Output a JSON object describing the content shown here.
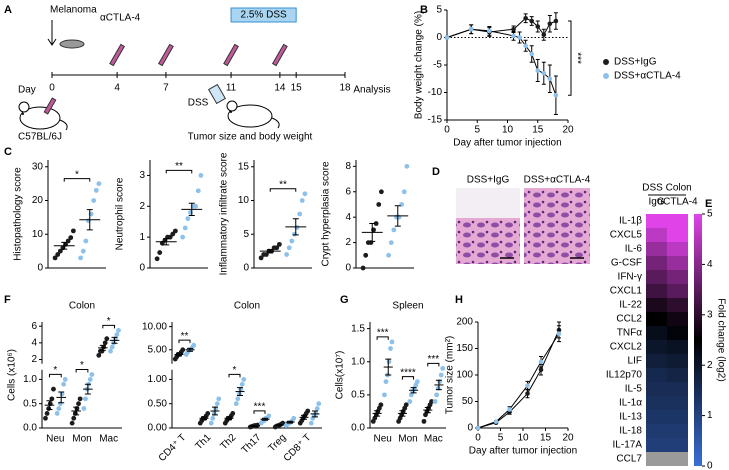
{
  "figure": {
    "panel_a": {
      "label": "A",
      "melanoma": "Melanoma",
      "antibody": "αCTLA-4",
      "dss_window": "2.5% DSS",
      "day": "Day",
      "days": [
        0,
        4,
        7,
        11,
        14,
        15,
        18
      ],
      "mouse": "C57BL/6J",
      "dss": "DSS",
      "measure": "Tumor size and body weight",
      "analysis": "Analysis"
    },
    "panel_d": {
      "label": "D",
      "images": [
        "DSS+IgG",
        "DSS+αCTLA-4"
      ]
    }
  },
  "chart_data": [
    {
      "type": "line",
      "label": "B",
      "xlabel": "Day after tumor injection",
      "ylabel": "Body weight change (%)",
      "xlim": [
        0,
        20
      ],
      "ylim": [
        -15,
        5
      ],
      "xticks": [
        0,
        5,
        10,
        15,
        20
      ],
      "yticks": [
        -15,
        -10,
        -5,
        0,
        5
      ],
      "hline": 0,
      "legend": "right",
      "significance": "***",
      "series": [
        {
          "name": "DSS+IgG",
          "color": "#1c1c1c",
          "x": [
            0,
            4,
            7,
            11,
            13,
            14,
            15,
            16,
            17,
            18
          ],
          "values": [
            0,
            1.5,
            1,
            1.5,
            3.5,
            3,
            2,
            0.5,
            2.5,
            3
          ],
          "errors": [
            0,
            0.8,
            0.8,
            0.6,
            0.8,
            0.8,
            1,
            1,
            1.5,
            1.5
          ]
        },
        {
          "name": "DSS+αCTLA-4",
          "color": "#8ec1ea",
          "x": [
            0,
            4,
            7,
            11,
            12,
            13,
            14,
            15,
            16,
            17,
            18
          ],
          "values": [
            0,
            1.5,
            1.2,
            0.3,
            0,
            -1.5,
            -3,
            -6,
            -6.5,
            -7.5,
            -10.5
          ],
          "errors": [
            0,
            0.8,
            0.8,
            0.8,
            1,
            1,
            1.5,
            2,
            2,
            2.5,
            3.5
          ]
        }
      ]
    },
    {
      "type": "dot",
      "label": "C",
      "ylabel": "Histopathology score",
      "ylim": [
        0,
        32
      ],
      "yticks": [
        0,
        10,
        20,
        30
      ],
      "significance": "*",
      "series": [
        {
          "color": "#1c1c1c",
          "points": [
            3,
            4,
            5,
            6,
            7,
            8,
            9,
            11
          ],
          "mean": 6.6,
          "sem": 1
        },
        {
          "color": "#8ec1ea",
          "points": [
            3,
            5,
            8,
            14,
            16,
            20,
            23,
            25
          ],
          "mean": 14.3,
          "sem": 3
        }
      ]
    },
    {
      "type": "dot",
      "ylabel": "Neutrophil score",
      "ylim": [
        0,
        3.5
      ],
      "yticks": [
        0,
        1,
        2,
        3
      ],
      "significance": "**",
      "series": [
        {
          "color": "#1c1c1c",
          "points": [
            0.3,
            0.5,
            0.8,
            0.9,
            1,
            1,
            1.1,
            1.2
          ],
          "mean": 0.85,
          "sem": 0.1
        },
        {
          "color": "#8ec1ea",
          "points": [
            1,
            1.3,
            1.6,
            1.8,
            2,
            2,
            2.5,
            3
          ],
          "mean": 1.9,
          "sem": 0.2
        }
      ]
    },
    {
      "type": "dot",
      "ylabel": "Inflammatory infiltrate score",
      "ylim": [
        0,
        16
      ],
      "yticks": [
        0,
        5,
        10,
        15
      ],
      "significance": "**",
      "series": [
        {
          "color": "#1c1c1c",
          "points": [
            1.5,
            2,
            2,
            2.5,
            2.5,
            3,
            3,
            3.5
          ],
          "mean": 2.5,
          "sem": 0.25
        },
        {
          "color": "#8ec1ea",
          "points": [
            2,
            3,
            4,
            5,
            6,
            8,
            10,
            11
          ],
          "mean": 6.1,
          "sem": 1.2
        }
      ]
    },
    {
      "type": "dot",
      "ylabel": "Crypt hyperplasia score",
      "ylim": [
        0,
        8.5
      ],
      "yticks": [
        0,
        2,
        4,
        6,
        8
      ],
      "series": [
        {
          "color": "#1c1c1c",
          "points": [
            0,
            1,
            2,
            2,
            3,
            3.5,
            5,
            6
          ],
          "mean": 2.8,
          "sem": 0.7
        },
        {
          "color": "#8ec1ea",
          "points": [
            1,
            2,
            3,
            4,
            4,
            5,
            6,
            8
          ],
          "mean": 4.1,
          "sem": 0.8
        }
      ]
    },
    {
      "type": "heatmap",
      "label": "E",
      "title": "DSS Colon",
      "columns": [
        "IgG",
        "αCTLA-4"
      ],
      "rows": [
        "IL-1β",
        "CXCL5",
        "IL-6",
        "G-CSF",
        "IFN-γ",
        "CXCL1",
        "IL-22",
        "CCL2",
        "TNFα",
        "CXCL2",
        "LIF",
        "IL12p70",
        "IL-5",
        "IL-1α",
        "IL-13",
        "IL-18",
        "IL-17A",
        "CCL7"
      ],
      "values": [
        [
          5,
          5
        ],
        [
          4.6,
          5
        ],
        [
          4.2,
          4.6
        ],
        [
          3.8,
          4.2
        ],
        [
          3.5,
          3.8
        ],
        [
          3.2,
          3.5
        ],
        [
          2.8,
          3
        ],
        [
          2.5,
          2.7
        ],
        [
          2.2,
          2.4
        ],
        [
          2,
          2.1
        ],
        [
          1.8,
          1.9
        ],
        [
          1.6,
          1.7
        ],
        [
          1.5,
          1.5
        ],
        [
          1.4,
          1.4
        ],
        [
          1.3,
          1.3
        ],
        [
          1.2,
          1.2
        ],
        [
          1.1,
          1.1
        ],
        [
          null,
          null
        ]
      ],
      "colorbar": {
        "label": "Fold change (log2)",
        "lim": [
          0,
          5
        ],
        "ticks": [
          0,
          1,
          2,
          3,
          4,
          5
        ],
        "colors": [
          "#3b6fd6",
          "#000000",
          "#e044e8"
        ]
      }
    },
    {
      "type": "dot",
      "label": "F",
      "title": "Colon",
      "ylabel": "Cells (x10⁶)",
      "categories": [
        "Neu",
        "Mon",
        "Mac"
      ],
      "ylim": [
        [
          0,
          1.2
        ],
        [
          1.5,
          6.5
        ]
      ],
      "yticks": [
        {
          "value": 0,
          "label": "0.0"
        },
        {
          "value": 0.5,
          "label": "0.5"
        },
        {
          "value": 1,
          "label": "1.0"
        },
        2,
        4,
        6
      ],
      "significance": [
        "*",
        "*",
        "*"
      ],
      "series": [
        {
          "color": "#1c1c1c",
          "points": [
            [
              0.2,
              0.3,
              0.4,
              0.5,
              0.6,
              0.8
            ],
            [
              0.1,
              0.2,
              0.3,
              0.4,
              0.5,
              0.6
            ],
            [
              2.5,
              3,
              3,
              3.5,
              4,
              4.5
            ]
          ],
          "mean": [
            0.47,
            0.35,
            3.4
          ],
          "sem": [
            0.09,
            0.08,
            0.3
          ]
        },
        {
          "color": "#8ec1ea",
          "points": [
            [
              0.3,
              0.4,
              0.5,
              0.7,
              0.9,
              1.0
            ],
            [
              0.4,
              0.6,
              0.8,
              0.9,
              1.0,
              1.1
            ],
            [
              3,
              3.5,
              4,
              4.5,
              5,
              5.5
            ]
          ],
          "mean": [
            0.63,
            0.8,
            4.3
          ],
          "sem": [
            0.11,
            0.1,
            0.35
          ]
        }
      ]
    },
    {
      "type": "dot",
      "title": "Colon",
      "categories": [
        "CD4⁺ T",
        "Th1",
        "Th2",
        "Th17",
        "Treg",
        "CD8⁺ T"
      ],
      "rotate": true,
      "ylim": [
        [
          0,
          1.2
        ],
        [
          2,
          11
        ]
      ],
      "yticks": [
        {
          "value": 0,
          "label": "0.00"
        },
        {
          "value": 0.5,
          "label": "0.50"
        },
        {
          "value": 1,
          "label": "1.00"
        },
        {
          "value": 5,
          "label": "5.00"
        },
        {
          "value": 10,
          "label": "10.00"
        }
      ],
      "significance": [
        "**",
        null,
        "*",
        "***",
        null,
        null
      ],
      "series": [
        {
          "color": "#1c1c1c",
          "points": [
            [
              3,
              3.5,
              4,
              4,
              4.5,
              5
            ],
            [
              0.1,
              0.15,
              0.2,
              0.2,
              0.25,
              0.3
            ],
            [
              0.1,
              0.15,
              0.2,
              0.2,
              0.25,
              0.3
            ],
            [
              0.02,
              0.03,
              0.04,
              0.05,
              0.05,
              0.06
            ],
            [
              0.02,
              0.04,
              0.05,
              0.06,
              0.08,
              0.1
            ],
            [
              0.1,
              0.15,
              0.2,
              0.25,
              0.3,
              0.35
            ]
          ],
          "mean": [
            4,
            0.2,
            0.2,
            0.04,
            0.06,
            0.22
          ],
          "sem": [
            0.3,
            0.03,
            0.03,
            0.01,
            0.01,
            0.04
          ]
        },
        {
          "color": "#8ec1ea",
          "points": [
            [
              4,
              4.5,
              5,
              5,
              5.5,
              6
            ],
            [
              0.1,
              0.2,
              0.3,
              0.4,
              0.5,
              0.6
            ],
            [
              0.5,
              0.6,
              0.7,
              0.8,
              0.9,
              1.0
            ],
            [
              0.1,
              0.15,
              0.15,
              0.2,
              0.2,
              0.25
            ],
            [
              0.05,
              0.08,
              0.1,
              0.12,
              0.15,
              0.2
            ],
            [
              0.1,
              0.2,
              0.25,
              0.3,
              0.4,
              0.5
            ]
          ],
          "mean": [
            5,
            0.35,
            0.75,
            0.18,
            0.12,
            0.29
          ],
          "sem": [
            0.3,
            0.08,
            0.08,
            0.02,
            0.02,
            0.06
          ]
        }
      ]
    },
    {
      "type": "dot",
      "label": "G",
      "title": "Spleen",
      "ylabel": "Cells(x10⁷)",
      "categories": [
        "Neu",
        "Mon",
        "Mac"
      ],
      "ylim": [
        0,
        1.6
      ],
      "yticks": [
        {
          "value": 0,
          "label": "0.0"
        },
        {
          "value": 0.5,
          "label": "0.5"
        },
        {
          "value": 1,
          "label": "1.0"
        },
        {
          "value": 1.5,
          "label": "1.5"
        }
      ],
      "significance": [
        "***",
        "****",
        "***"
      ],
      "series": [
        {
          "color": "#1c1c1c",
          "points": [
            [
              0.1,
              0.15,
              0.2,
              0.25,
              0.3,
              0.35
            ],
            [
              0.1,
              0.15,
              0.2,
              0.25,
              0.3,
              0.35
            ],
            [
              0.1,
              0.2,
              0.25,
              0.3,
              0.35,
              0.4
            ]
          ],
          "mean": [
            0.22,
            0.22,
            0.27
          ],
          "sem": [
            0.04,
            0.04,
            0.04
          ]
        },
        {
          "color": "#8ec1ea",
          "points": [
            [
              0.5,
              0.7,
              0.8,
              1.0,
              1.2,
              1.3
            ],
            [
              0.4,
              0.5,
              0.55,
              0.6,
              0.65,
              0.7
            ],
            [
              0.4,
              0.5,
              0.6,
              0.7,
              0.8,
              0.9
            ]
          ],
          "mean": [
            0.92,
            0.57,
            0.65
          ],
          "sem": [
            0.12,
            0.04,
            0.07
          ]
        }
      ]
    },
    {
      "type": "line",
      "label": "H",
      "xlabel": "Day after tumor injection",
      "ylabel": "Tumor size (mm²)",
      "xlim": [
        0,
        20
      ],
      "ylim": [
        0,
        200
      ],
      "xticks": [
        0,
        5,
        10,
        15,
        20
      ],
      "yticks": [
        0,
        50,
        100,
        150,
        200
      ],
      "series": [
        {
          "color": "#1c1c1c",
          "x": [
            0,
            4,
            7,
            11,
            14,
            18
          ],
          "values": [
            0,
            10,
            30,
            65,
            110,
            185
          ],
          "errors": [
            0,
            2,
            4,
            8,
            10,
            15
          ]
        },
        {
          "color": "#8ec1ea",
          "x": [
            0,
            4,
            7,
            11,
            14,
            18
          ],
          "values": [
            0,
            12,
            35,
            80,
            125,
            178
          ],
          "errors": [
            0,
            2,
            5,
            8,
            10,
            15
          ]
        }
      ]
    }
  ]
}
